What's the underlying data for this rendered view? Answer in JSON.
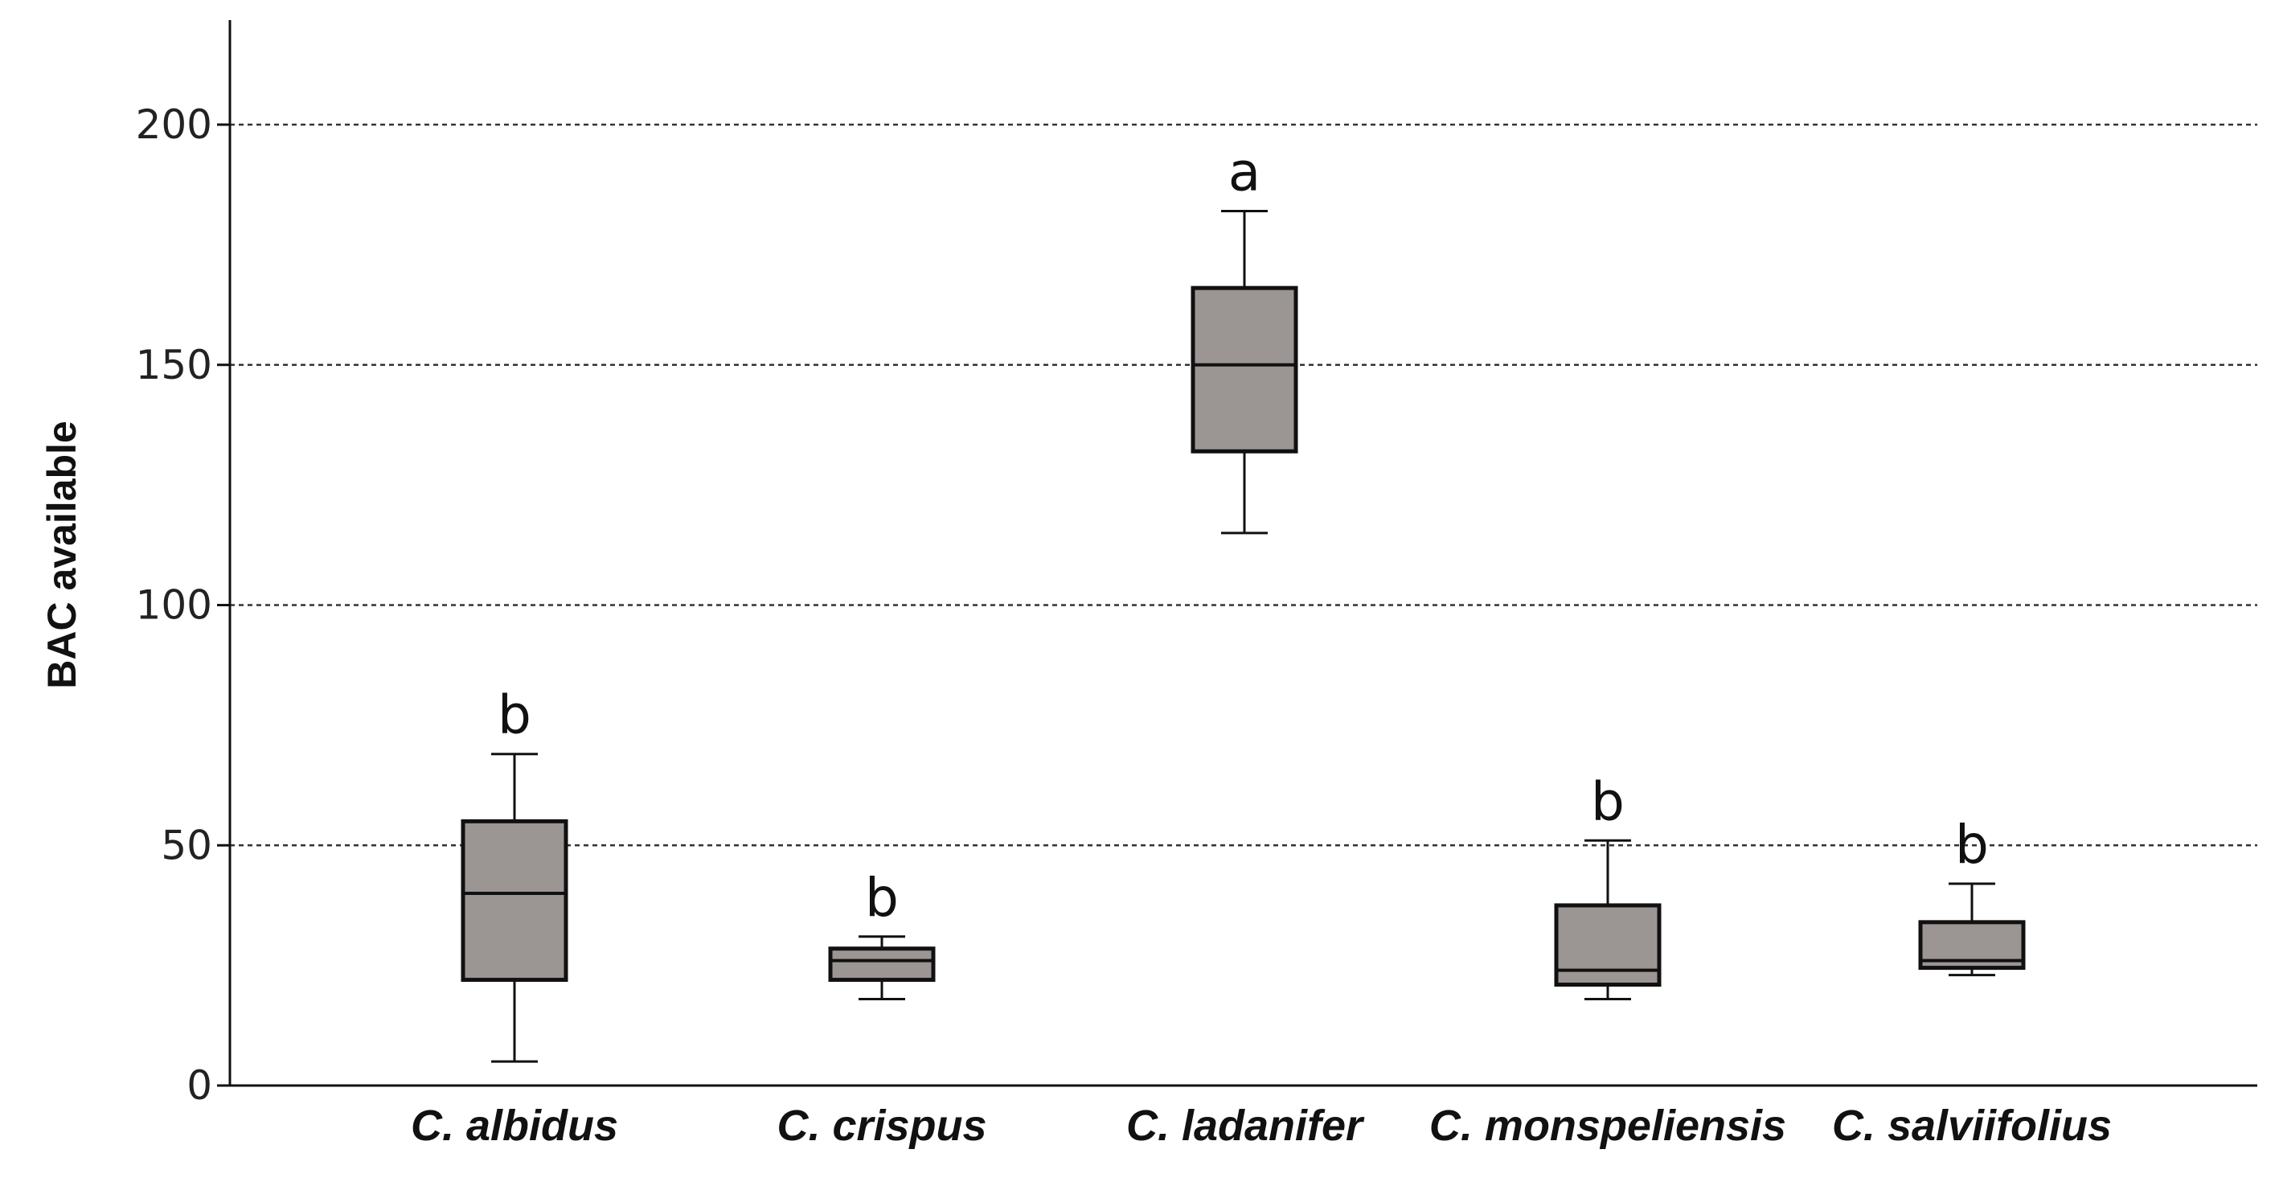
{
  "chart_data": {
    "type": "boxplot",
    "ylabel": "BAC available",
    "xlabel": "",
    "ylim": [
      0,
      220
    ],
    "yticks": [
      0,
      50,
      100,
      150,
      200
    ],
    "grid": "horizontal dashed",
    "categories": [
      "C. albidus",
      "C. crispus",
      "C. ladanifer",
      "C. monspeliensis",
      "C. salviifolius"
    ],
    "boxes": [
      {
        "category": "C. albidus",
        "whisker_low": 5,
        "q1": 22,
        "median": 40,
        "q3": 55,
        "whisker_high": 69,
        "letter": "b"
      },
      {
        "category": "C. crispus",
        "whisker_low": 18,
        "q1": 22,
        "median": 26,
        "q3": 28.5,
        "whisker_high": 31,
        "letter": "b"
      },
      {
        "category": "C. ladanifer",
        "whisker_low": 115,
        "q1": 132,
        "median": 150,
        "q3": 166,
        "whisker_high": 182,
        "letter": "a"
      },
      {
        "category": "C. monspeliensis",
        "whisker_low": 18,
        "q1": 21,
        "median": 24,
        "q3": 37.5,
        "whisker_high": 51,
        "letter": "b"
      },
      {
        "category": "C. salviifolius",
        "whisker_low": 23,
        "q1": 24.5,
        "median": 26,
        "q3": 34,
        "whisker_high": 42,
        "letter": "b"
      }
    ],
    "colors": {
      "box_fill": "#9b9593",
      "stroke": "#111111",
      "grid": "#333333"
    }
  }
}
